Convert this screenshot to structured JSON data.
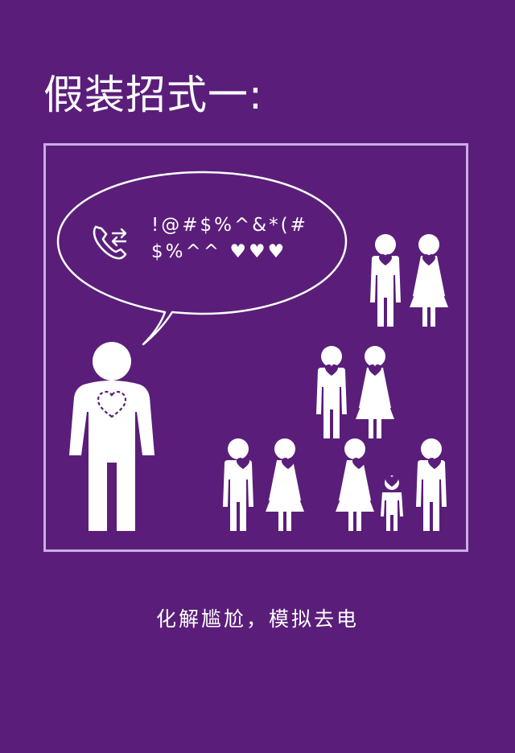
{
  "title": "假装招式一:",
  "bubble": {
    "line1": "!@#$%^&*(#",
    "line2": "$%^^ ♥♥♥"
  },
  "caption": "化解尴尬，模拟去电",
  "colors": {
    "background": "#5a1e7a",
    "frame": "#c9aee4",
    "figure": "#ffffff",
    "heart": "#5a1e7a"
  },
  "icons": [
    "phone-outgoing-icon",
    "speech-bubble-icon",
    "person-icon",
    "heart-icon"
  ]
}
